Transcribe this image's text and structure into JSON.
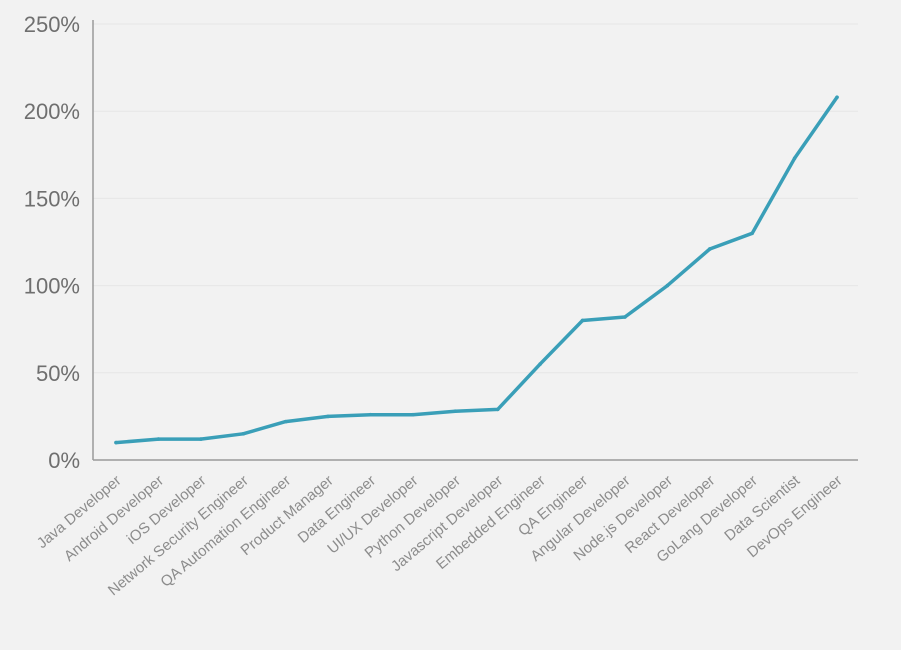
{
  "chart_data": {
    "type": "line",
    "title": "",
    "xlabel": "",
    "ylabel": "",
    "categories": [
      "Java Developer",
      "Android Developer",
      "iOS Developer",
      "Network Security Engineer",
      "QA Automation Engineer",
      "Product Manager",
      "Data Engineer",
      "UI/UX Developer",
      "Python Developer",
      "Javascript Developer",
      "Embedded Engineer",
      "QA Engineer",
      "Angular Developer",
      "Node.js Developer",
      "React Developer",
      "GoLang Developer",
      "Data Scientist",
      "DevOps Engineer"
    ],
    "series": [
      {
        "values": [
          10,
          12,
          12,
          15,
          22,
          25,
          26,
          26,
          28,
          29,
          55,
          80,
          82,
          100,
          121,
          130,
          173,
          208
        ]
      }
    ],
    "y_unit": "%",
    "ylim": [
      0,
      250
    ],
    "y_ticks": [
      0,
      50,
      100,
      150,
      200,
      250
    ],
    "y_tick_labels": [
      "0%",
      "50%",
      "100%",
      "150%",
      "200%",
      "250%"
    ],
    "grid": true,
    "legend": "none",
    "colors": {
      "line": "#3a9fb8",
      "grid": "#e6e6e6",
      "axis": "#9a9a9a",
      "tick_text": "#8c8c8c",
      "y_tick_text": "#6f6f6f",
      "background": "#f2f2f2"
    }
  }
}
